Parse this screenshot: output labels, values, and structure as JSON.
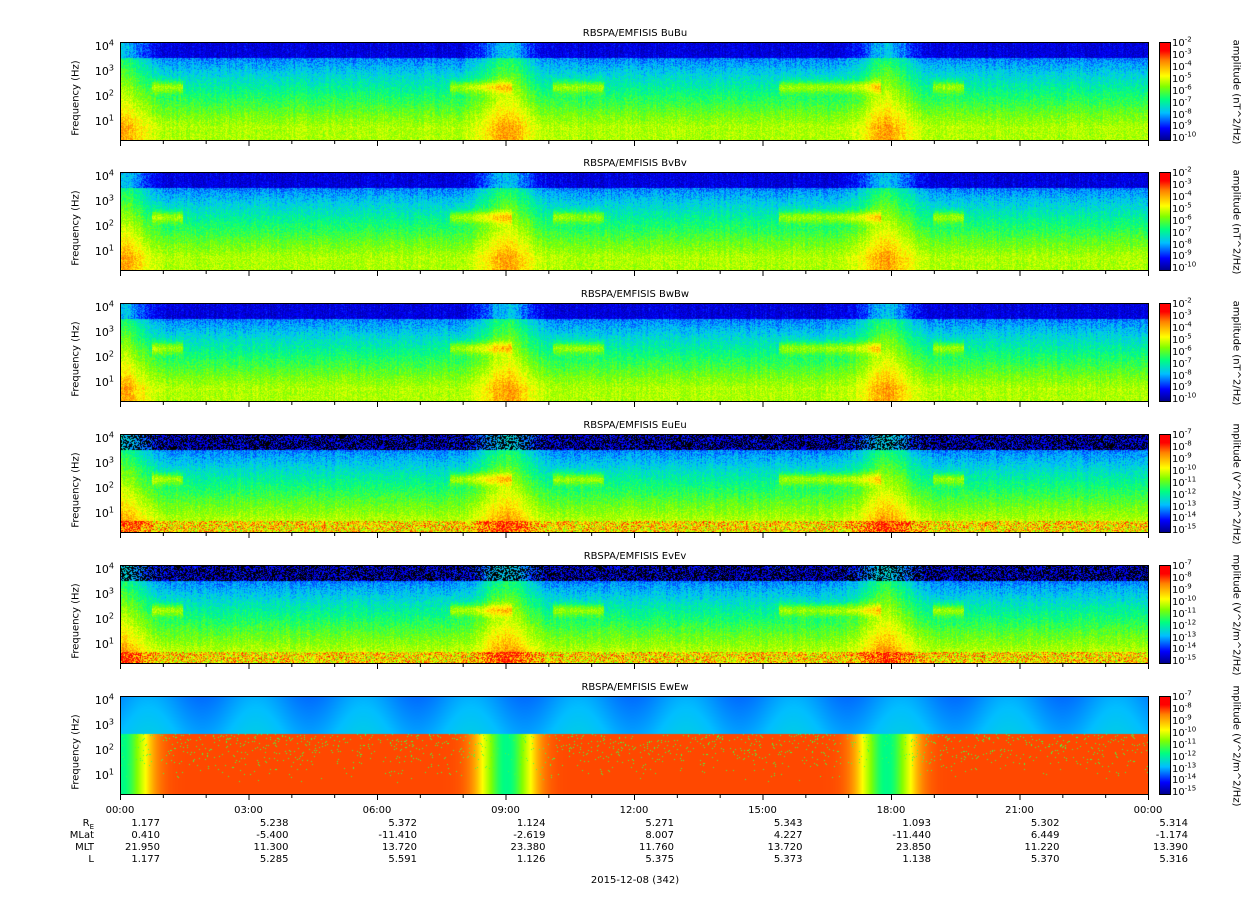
{
  "panels": [
    {
      "title": "RBSPA/EMFISIS  BuBu",
      "ylabel": "Frequency (Hz)",
      "yticks": [
        "10^4",
        "10^3",
        "10^2",
        "10^1"
      ],
      "cbar_label": "amplitude (nT^2/Hz)",
      "cbar_ticks": [
        "10^-2",
        "10^-3",
        "10^-4",
        "10^-5",
        "10^-6",
        "10^-7",
        "10^-8",
        "10^-9",
        "10^-10"
      ]
    },
    {
      "title": "RBSPA/EMFISIS  BvBv",
      "ylabel": "Frequency (Hz)",
      "yticks": [
        "10^4",
        "10^3",
        "10^2",
        "10^1"
      ],
      "cbar_label": "amplitude (nT^2/Hz)",
      "cbar_ticks": [
        "10^-2",
        "10^-3",
        "10^-4",
        "10^-5",
        "10^-6",
        "10^-7",
        "10^-8",
        "10^-9",
        "10^-10"
      ]
    },
    {
      "title": "RBSPA/EMFISIS  BwBw",
      "ylabel": "Frequency (Hz)",
      "yticks": [
        "10^4",
        "10^3",
        "10^2",
        "10^1"
      ],
      "cbar_label": "amplitude (nT^2/Hz)",
      "cbar_ticks": [
        "10^-2",
        "10^-3",
        "10^-4",
        "10^-5",
        "10^-6",
        "10^-7",
        "10^-8",
        "10^-9",
        "10^-10"
      ]
    },
    {
      "title": "RBSPA/EMFISIS  EuEu",
      "ylabel": "Frequency (Hz)",
      "yticks": [
        "10^4",
        "10^3",
        "10^2",
        "10^1"
      ],
      "cbar_label": "mplitude (V^2/m^2/Hz)",
      "cbar_ticks": [
        "10^-7",
        "10^-8",
        "10^-9",
        "10^-10",
        "10^-11",
        "10^-12",
        "10^-13",
        "10^-14",
        "10^-15"
      ]
    },
    {
      "title": "RBSPA/EMFISIS  EvEv",
      "ylabel": "Frequency (Hz)",
      "yticks": [
        "10^4",
        "10^3",
        "10^2",
        "10^1"
      ],
      "cbar_label": "mplitude (V^2/m^2/Hz)",
      "cbar_ticks": [
        "10^-7",
        "10^-8",
        "10^-9",
        "10^-10",
        "10^-11",
        "10^-12",
        "10^-13",
        "10^-14",
        "10^-15"
      ]
    },
    {
      "title": "RBSPA/EMFISIS  EwEw",
      "ylabel": "Frequency (Hz)",
      "yticks": [
        "10^4",
        "10^3",
        "10^2",
        "10^1"
      ],
      "cbar_label": "mplitude (V^2/m^2/Hz)",
      "cbar_ticks": [
        "10^-7",
        "10^-8",
        "10^-9",
        "10^-10",
        "10^-11",
        "10^-12",
        "10^-13",
        "10^-14",
        "10^-15"
      ]
    }
  ],
  "xaxis": {
    "ticks": [
      "00:00",
      "03:00",
      "06:00",
      "09:00",
      "12:00",
      "15:00",
      "18:00",
      "21:00",
      "00:00"
    ],
    "rows": [
      {
        "label": "R_E",
        "values": [
          "1.177",
          "5.238",
          "5.372",
          "1.124",
          "5.271",
          "5.343",
          "1.093",
          "5.302",
          "5.314"
        ]
      },
      {
        "label": "MLat",
        "values": [
          "0.410",
          "-5.400",
          "-11.410",
          "-2.619",
          "8.007",
          "4.227",
          "-11.440",
          "6.449",
          "-1.174"
        ]
      },
      {
        "label": "MLT",
        "values": [
          "21.950",
          "11.300",
          "13.720",
          "23.380",
          "11.760",
          "13.720",
          "23.850",
          "11.220",
          "13.390"
        ]
      },
      {
        "label": "L",
        "values": [
          "1.177",
          "5.285",
          "5.591",
          "1.126",
          "5.375",
          "5.373",
          "1.138",
          "5.370",
          "5.316"
        ]
      }
    ],
    "date": "2015-12-08 (342)"
  },
  "chart_data": [
    {
      "type": "heatmap",
      "title": "RBSPA/EMFISIS  BuBu",
      "ylabel": "Frequency (Hz)",
      "yscale": "log",
      "ylim": [
        2,
        15000
      ],
      "xlim": [
        "00:00",
        "00:00"
      ],
      "colorbar": {
        "label": "amplitude (nT^2/Hz)",
        "scale": "log",
        "range": [
          1e-10,
          0.01
        ]
      }
    },
    {
      "type": "heatmap",
      "title": "RBSPA/EMFISIS  BvBv",
      "ylabel": "Frequency (Hz)",
      "yscale": "log",
      "ylim": [
        2,
        15000
      ],
      "xlim": [
        "00:00",
        "00:00"
      ],
      "colorbar": {
        "label": "amplitude (nT^2/Hz)",
        "scale": "log",
        "range": [
          1e-10,
          0.01
        ]
      }
    },
    {
      "type": "heatmap",
      "title": "RBSPA/EMFISIS  BwBw",
      "ylabel": "Frequency (Hz)",
      "yscale": "log",
      "ylim": [
        2,
        15000
      ],
      "xlim": [
        "00:00",
        "00:00"
      ],
      "colorbar": {
        "label": "amplitude (nT^2/Hz)",
        "scale": "log",
        "range": [
          1e-10,
          0.01
        ]
      }
    },
    {
      "type": "heatmap",
      "title": "RBSPA/EMFISIS  EuEu",
      "ylabel": "Frequency (Hz)",
      "yscale": "log",
      "ylim": [
        2,
        15000
      ],
      "xlim": [
        "00:00",
        "00:00"
      ],
      "colorbar": {
        "label": "mplitude (V^2/m^2/Hz)",
        "scale": "log",
        "range": [
          1e-15,
          1e-07
        ]
      }
    },
    {
      "type": "heatmap",
      "title": "RBSPA/EMFISIS  EvEv",
      "ylabel": "Frequency (Hz)",
      "yscale": "log",
      "ylim": [
        2,
        15000
      ],
      "xlim": [
        "00:00",
        "00:00"
      ],
      "colorbar": {
        "label": "mplitude (V^2/m^2/Hz)",
        "scale": "log",
        "range": [
          1e-15,
          1e-07
        ]
      }
    },
    {
      "type": "heatmap",
      "title": "RBSPA/EMFISIS  EwEw",
      "ylabel": "Frequency (Hz)",
      "yscale": "log",
      "ylim": [
        2,
        15000
      ],
      "xlim": [
        "00:00",
        "00:00"
      ],
      "colorbar": {
        "label": "mplitude (V^2/m^2/Hz)",
        "scale": "log",
        "range": [
          1e-15,
          1e-07
        ]
      }
    }
  ],
  "colors": {
    "cmap": [
      "#00008f",
      "#0000ff",
      "#00bfff",
      "#00ff80",
      "#80ff00",
      "#ffff00",
      "#ff8000",
      "#ff0000"
    ],
    "empty": "#000000"
  }
}
